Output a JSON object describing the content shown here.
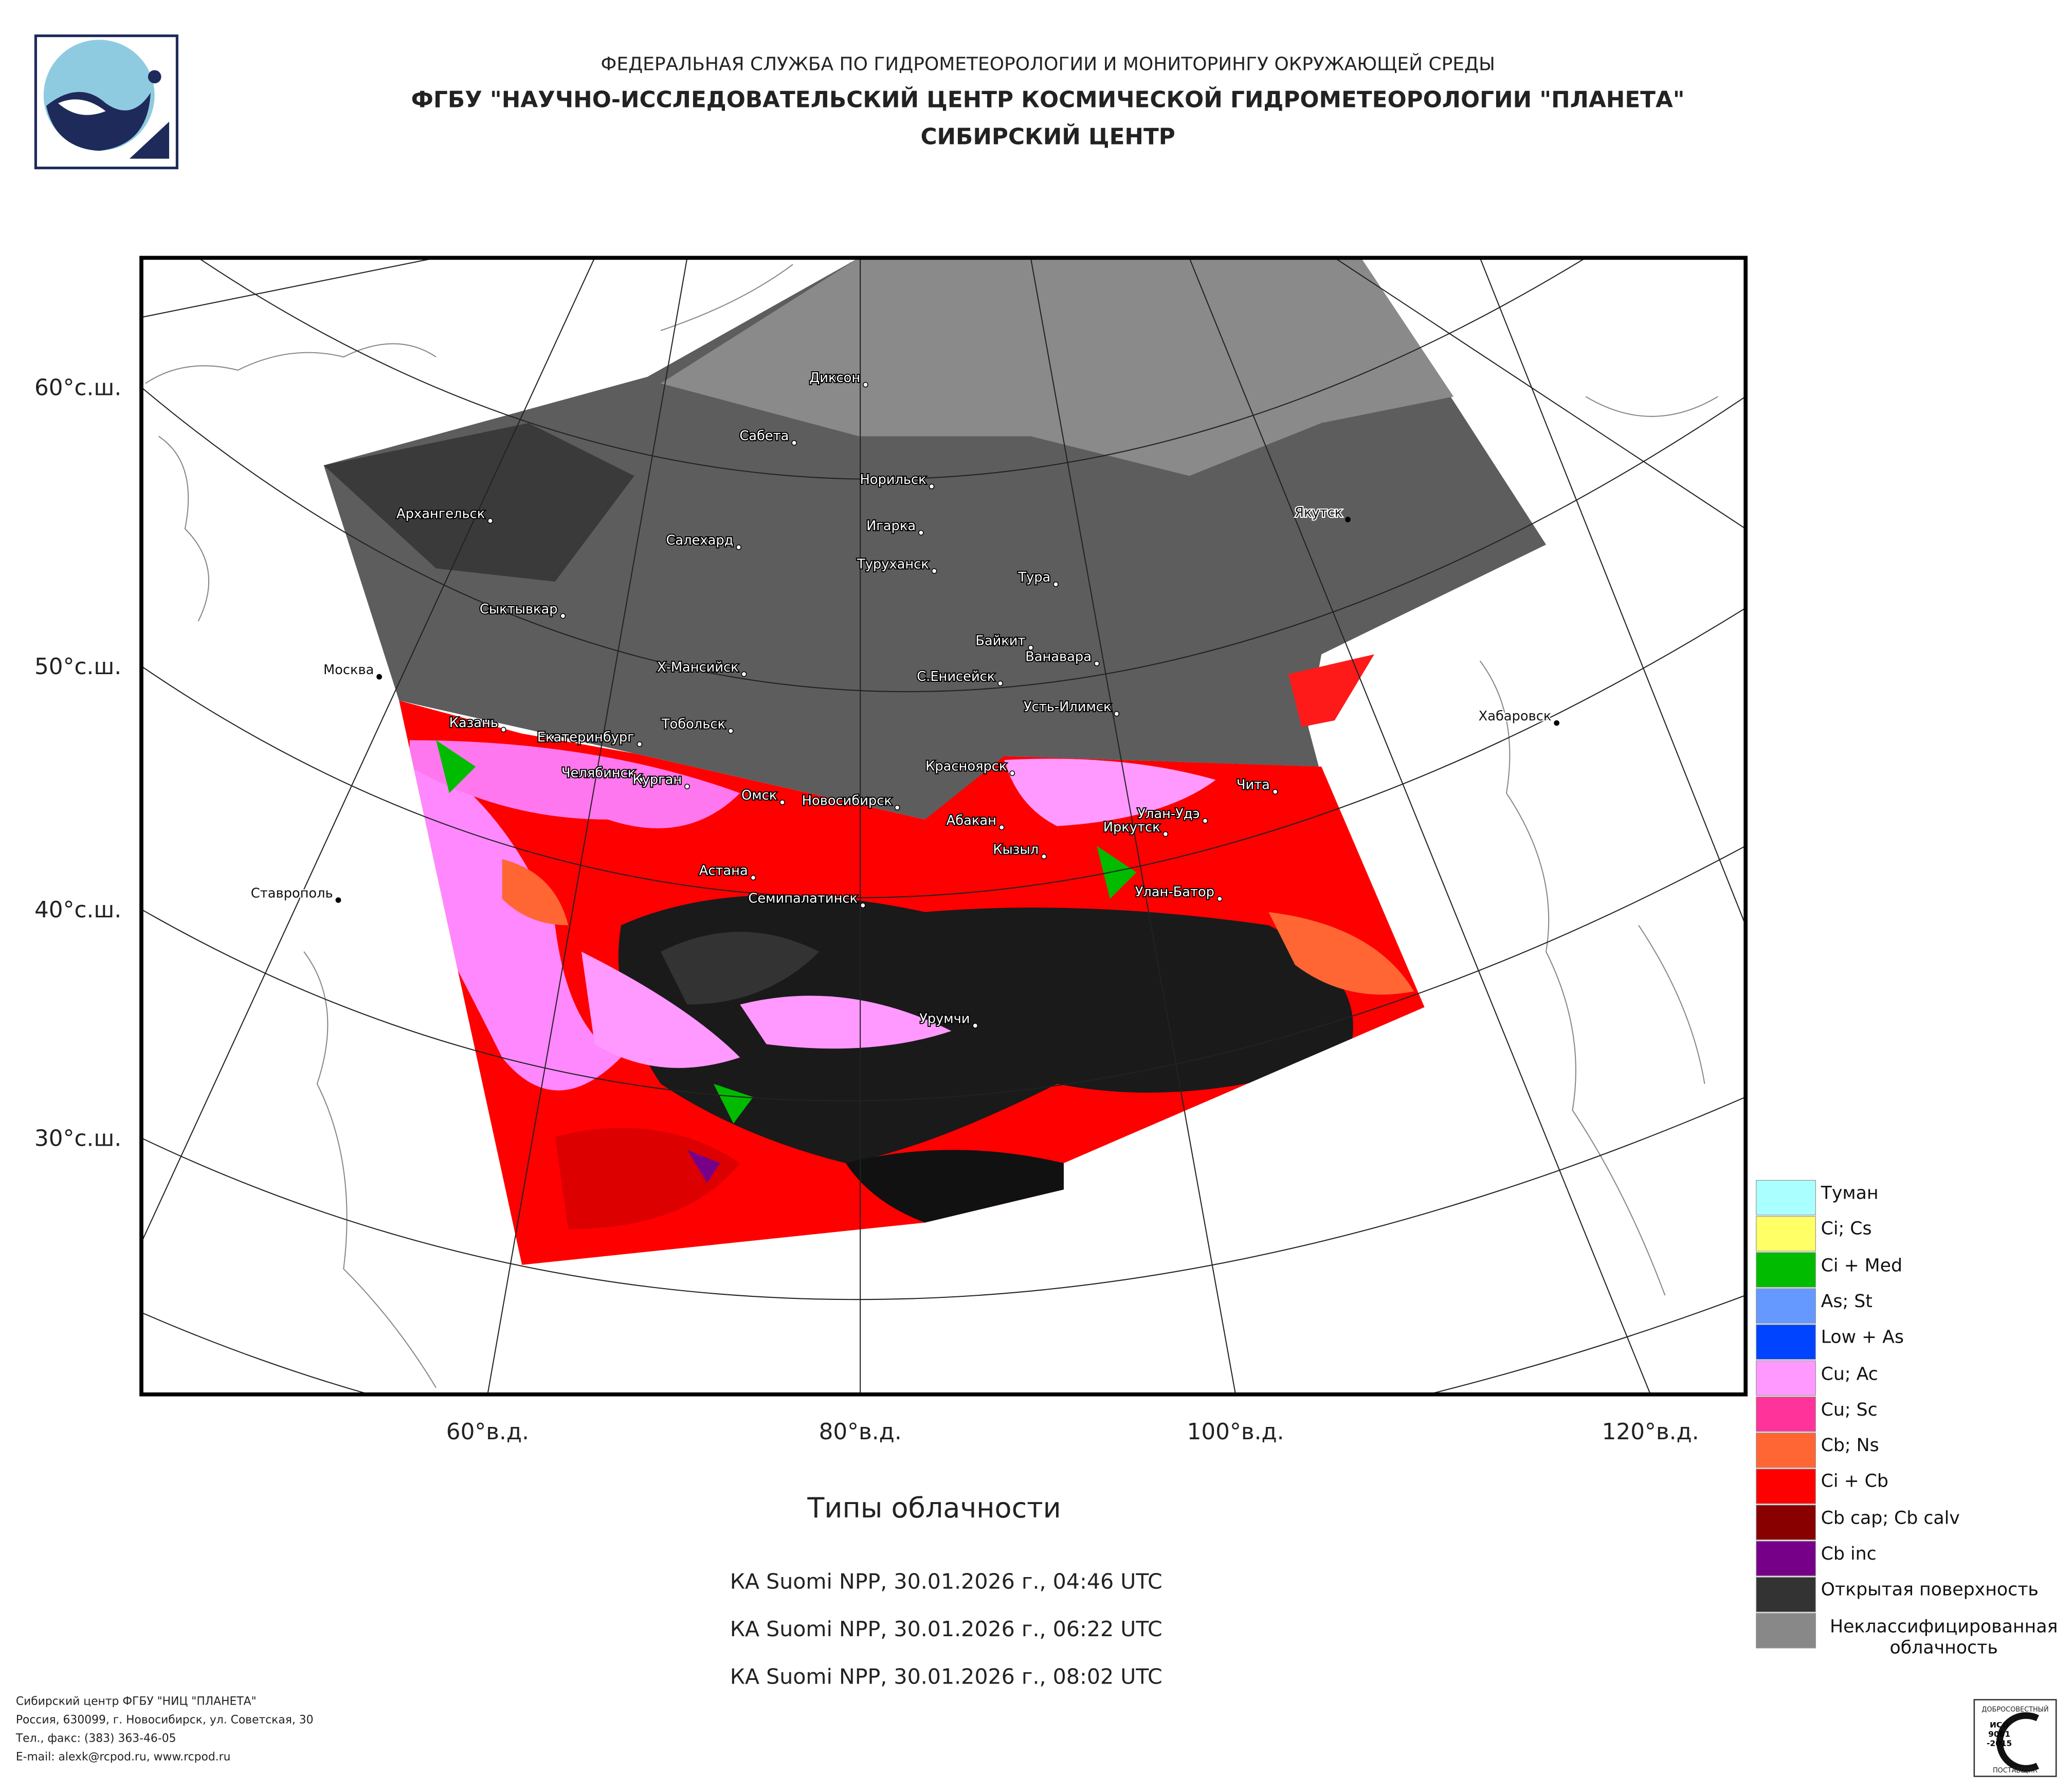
{
  "header": {
    "agency": "ФЕДЕРАЛЬНАЯ СЛУЖБА ПО ГИДРОМЕТЕОРОЛОГИИ И МОНИТОРИНГУ ОКРУЖАЮЩЕЙ СРЕДЫ",
    "center": "ФГБУ \"НАУЧНО-ИССЛЕДОВАТЕЛЬСКИЙ ЦЕНТР КОСМИЧЕСКОЙ ГИДРОМЕТЕОРОЛОГИИ \"ПЛАНЕТА\"",
    "branch": "СИБИРСКИЙ ЦЕНТР"
  },
  "map": {
    "lat_labels": [
      "60°с.ш.",
      "50°с.ш.",
      "40°с.ш.",
      "30°с.ш."
    ],
    "lon_labels": [
      "60°в.д.",
      "80°в.д.",
      "100°в.д.",
      "120°в.д."
    ],
    "cities": [
      "Диксон",
      "Сабета",
      "Норильск",
      "Архангельск",
      "Игарка",
      "Салехард",
      "Туруханск",
      "Тура",
      "Якутск",
      "Сыктывкар",
      "Байкит",
      "Ванавара",
      "Москва",
      "Х-Мансийск",
      "С.Енисейск",
      "Усть-Илимск",
      "Хабаровск",
      "Казань",
      "Тобольск",
      "Екатеринбург",
      "Красноярск",
      "Чита",
      "Челябинск",
      "Курган",
      "Омск",
      "Новосибирск",
      "Улан-Удэ",
      "Абакан",
      "Иркутск",
      "Кызыл",
      "Астана",
      "Ставрополь",
      "Семипалатинск",
      "Улан-Батор",
      "Урумчи"
    ]
  },
  "legend": [
    {
      "label": "Туман",
      "color": "#aaffff"
    },
    {
      "label": "Ci; Cs",
      "color": "#ffff66"
    },
    {
      "label": "Ci + Med",
      "color": "#00bb00"
    },
    {
      "label": "As; St",
      "color": "#6699ff"
    },
    {
      "label": "Low + As",
      "color": "#0044ff"
    },
    {
      "label": "Cu; Ac",
      "color": "#ff99ff"
    },
    {
      "label": "Cu; Sc",
      "color": "#ff3399"
    },
    {
      "label": "Cb; Ns",
      "color": "#ff6633"
    },
    {
      "label": "Ci + Cb",
      "color": "#ff0000"
    },
    {
      "label": "Cb cap; Cb calv",
      "color": "#880000"
    },
    {
      "label": "Cb inc",
      "color": "#770088"
    },
    {
      "label": "Открытая поверхность",
      "color": "#333333"
    },
    {
      "label": "Неклассифицированная\nоблачность",
      "color": "#888888"
    }
  ],
  "title": "Типы облачности",
  "passes": [
    "КА Suomi NPP, 30.01.2026 г., 04:46 UTC",
    "КА Suomi NPP, 30.01.2026 г., 06:22 UTC",
    "КА Suomi NPP, 30.01.2026 г., 08:02 UTC"
  ],
  "footer": [
    "Сибирский центр ФГБУ \"НИЦ \"ПЛАНЕТА\"",
    "Россия, 630099, г. Новосибирск, ул. Советская, 30",
    "Тел., факс: (383) 363-46-05",
    "E-mail: alexk@rcpod.ru, www.rcpod.ru"
  ],
  "badge": {
    "top": "ДОБРОСОВЕСТНЫЙ",
    "standard": "ИСО 9001 -2015",
    "bottom": "ПОСТАВЩИК"
  }
}
